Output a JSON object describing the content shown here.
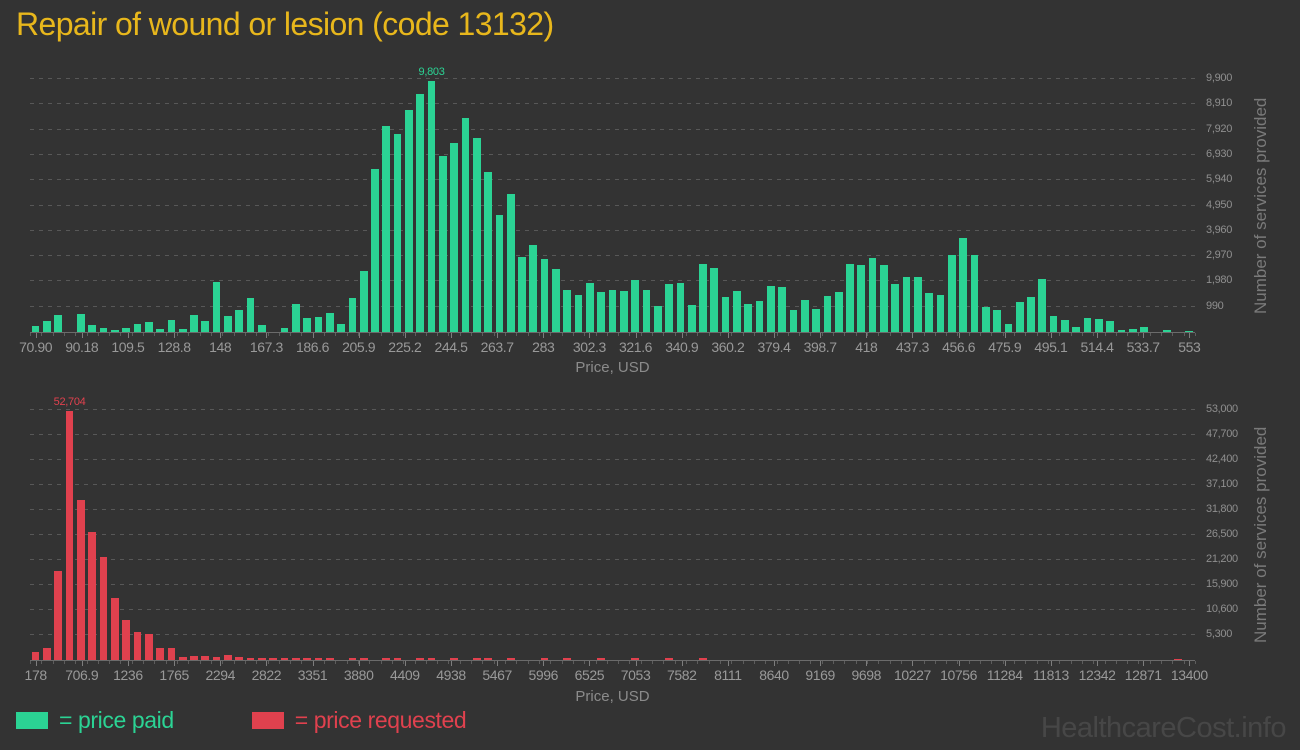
{
  "title": "Repair of wound or lesion (code 13132)",
  "watermark": "HealthcareCost.info",
  "colors": {
    "background": "#333333",
    "paid": "#2bd394",
    "requested": "#e0414e",
    "title": "#e8b71c",
    "axis_text": "#999999",
    "grid": "#585858",
    "watermark": "#474747"
  },
  "legend": {
    "items": [
      {
        "label": "= price paid",
        "color": "#2bd394"
      },
      {
        "label": "= price requested",
        "color": "#e0414e"
      }
    ]
  },
  "chart_data": [
    {
      "type": "bar",
      "series_name": "price paid",
      "color": "#2bd394",
      "xlabel": "Price, USD",
      "ylabel": "Number of services provided",
      "ymax": 9900,
      "grid": true,
      "x_ticks": [
        "70.90",
        "90.18",
        "109.5",
        "128.8",
        "148",
        "167.3",
        "186.6",
        "205.9",
        "225.2",
        "244.5",
        "263.7",
        "283",
        "302.3",
        "321.6",
        "340.9",
        "360.2",
        "379.4",
        "398.7",
        "418",
        "437.3",
        "456.6",
        "475.9",
        "495.1",
        "514.4",
        "533.7",
        "553"
      ],
      "y_ticks": [
        "990",
        "1,980",
        "2,970",
        "3,960",
        "4,950",
        "5,940",
        "6,930",
        "7,920",
        "8,910",
        "9,900"
      ],
      "values": [
        230,
        445,
        675,
        0,
        700,
        255,
        165,
        80,
        140,
        330,
        380,
        130,
        470,
        130,
        665,
        430,
        1960,
        625,
        860,
        1340,
        260,
        0,
        170,
        1080,
        535,
        585,
        755,
        325,
        1340,
        2390,
        6380,
        8080,
        7760,
        8690,
        9310,
        9803,
        6880,
        7390,
        8380,
        7580,
        6280,
        4560,
        5390,
        2920,
        3410,
        2850,
        2470,
        1630,
        1460,
        1930,
        1560,
        1630,
        1590,
        2020,
        1630,
        1015,
        1890,
        1915,
        1040,
        2670,
        2500,
        1380,
        1615,
        1080,
        1225,
        1785,
        1745,
        845,
        1250,
        910,
        1405,
        1560,
        2670,
        2605,
        2890,
        2605,
        1890,
        2150,
        2150,
        1535,
        1460,
        3020,
        3685,
        3020,
        975,
        870,
        300,
        1170,
        1365,
        2080,
        625,
        480,
        195,
        545,
        520,
        415,
        90,
        130,
        195,
        0,
        65,
        0,
        40
      ],
      "peak": {
        "index": 35,
        "label": "9,803"
      }
    },
    {
      "type": "bar",
      "series_name": "price requested",
      "color": "#e0414e",
      "xlabel": "Price, USD",
      "ylabel": "Number of services provided",
      "ymax": 53000,
      "grid": true,
      "x_ticks": [
        "178",
        "706.9",
        "1236",
        "1765",
        "2294",
        "2822",
        "3351",
        "3880",
        "4409",
        "4938",
        "5467",
        "5996",
        "6525",
        "7053",
        "7582",
        "8111",
        "8640",
        "9169",
        "9698",
        "10227",
        "10756",
        "11284",
        "11813",
        "12342",
        "12871",
        "13400"
      ],
      "y_ticks": [
        "5,300",
        "10,600",
        "15,900",
        "21,200",
        "26,500",
        "31,800",
        "37,100",
        "42,400",
        "47,700",
        "53,000"
      ],
      "values": [
        1775,
        2485,
        18800,
        52704,
        34000,
        27200,
        21800,
        13100,
        8500,
        5900,
        5500,
        2500,
        2480,
        710,
        850,
        920,
        710,
        1060,
        710,
        360,
        400,
        430,
        400,
        450,
        420,
        440,
        400,
        0,
        380,
        420,
        0,
        400,
        430,
        0,
        400,
        380,
        0,
        420,
        0,
        380,
        400,
        0,
        360,
        0,
        0,
        400,
        0,
        360,
        0,
        0,
        350,
        0,
        0,
        380,
        0,
        0,
        340,
        0,
        0,
        360,
        0,
        0,
        0,
        0,
        0,
        0,
        0,
        0,
        0,
        0,
        0,
        0,
        0,
        0,
        0,
        0,
        0,
        0,
        0,
        0,
        0,
        0,
        0,
        0,
        0,
        0,
        0,
        0,
        0,
        0,
        0,
        0,
        0,
        0,
        0,
        0,
        0,
        0,
        0,
        0,
        0,
        310,
        0
      ],
      "peak": {
        "index": 3,
        "label": "52,704"
      }
    }
  ]
}
